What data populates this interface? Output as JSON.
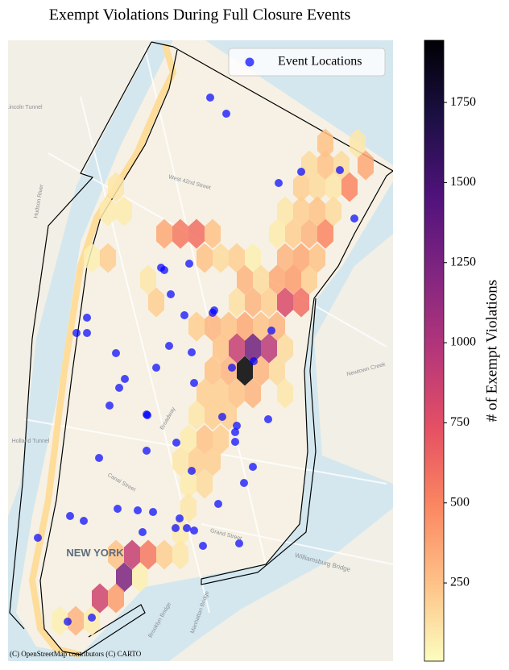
{
  "chart_data": {
    "type": "hexbin",
    "title": "Exempt Violations During Full Closure Events",
    "xlim": [
      -74.03,
      -73.9344
    ],
    "ylim": [
      40.6845,
      40.8
    ],
    "hexbins": {
      "x": [
        -73.9512,
        -73.9432,
        -73.9552,
        -73.9512,
        -73.9472,
        -73.9412,
        -74.0032,
        -73.9572,
        -73.9532,
        -73.9492,
        -73.9452,
        -74.0052,
        -74.0012,
        -73.9612,
        -73.9572,
        -73.9532,
        -73.9492,
        -73.9912,
        -73.9872,
        -73.9832,
        -73.9792,
        -73.9632,
        -73.9592,
        -73.9552,
        -73.9512,
        -74.0092,
        -74.0052,
        -73.9812,
        -73.9772,
        -73.9732,
        -73.9692,
        -73.9612,
        -73.9572,
        -73.9532,
        -73.9952,
        -73.9712,
        -73.9672,
        -73.9632,
        -73.9592,
        -73.9552,
        -73.9932,
        -73.9732,
        -73.9692,
        -73.9652,
        -73.9612,
        -73.9572,
        -73.9832,
        -73.9792,
        -73.9752,
        -73.9712,
        -73.9672,
        -73.9632,
        -73.9772,
        -73.9732,
        -73.9692,
        -73.9652,
        -73.9612,
        -73.9792,
        -73.9752,
        -73.9712,
        -73.9672,
        -73.9632,
        -73.9812,
        -73.9772,
        -73.9732,
        -73.9692,
        -73.9612,
        -73.9832,
        -73.9792,
        -73.9752,
        -73.9852,
        -73.9812,
        -73.9772,
        -73.9872,
        -73.9832,
        -73.9792,
        -73.9852,
        -73.9812,
        -73.9852,
        -73.9872,
        -74.0032,
        -73.9992,
        -73.9952,
        -73.9912,
        -73.9872,
        -74.0012,
        -73.9972,
        -74.0072,
        -74.0032,
        -74.0172,
        -74.0132,
        -74.0092
      ],
      "y": [
        40.7808,
        40.7808,
        40.77675,
        40.77675,
        40.77675,
        40.77675,
        40.7727,
        40.7727,
        40.7727,
        40.7727,
        40.7727,
        40.7682,
        40.7682,
        40.7682,
        40.7682,
        40.7682,
        40.7682,
        40.764,
        40.764,
        40.764,
        40.764,
        40.764,
        40.764,
        40.764,
        40.764,
        40.7595,
        40.7595,
        40.7595,
        40.7595,
        40.7595,
        40.7595,
        40.7595,
        40.7595,
        40.7595,
        40.75545,
        40.75545,
        40.75545,
        40.75545,
        40.75545,
        40.75545,
        40.75125,
        40.75125,
        40.75125,
        40.75125,
        40.75125,
        40.75125,
        40.74675,
        40.74675,
        40.74675,
        40.74675,
        40.74675,
        40.74675,
        40.7427,
        40.7427,
        40.7427,
        40.7427,
        40.7427,
        40.7385,
        40.7385,
        40.7385,
        40.7385,
        40.7385,
        40.7343,
        40.7343,
        40.7343,
        40.7343,
        40.7343,
        40.73025,
        40.73025,
        40.73025,
        40.72575,
        40.72575,
        40.72575,
        40.7217,
        40.7217,
        40.7217,
        40.7175,
        40.7175,
        40.713,
        40.7085,
        40.7043,
        40.7043,
        40.7043,
        40.7043,
        40.7043,
        40.7001,
        40.7001,
        40.6962,
        40.6962,
        40.692,
        40.692,
        40.692
      ],
      "values": [
        250,
        100,
        150,
        250,
        150,
        350,
        100,
        200,
        150,
        100,
        500,
        80,
        80,
        100,
        200,
        250,
        150,
        350,
        550,
        600,
        250,
        80,
        200,
        300,
        500,
        60,
        200,
        250,
        150,
        200,
        60,
        300,
        350,
        250,
        100,
        300,
        150,
        350,
        400,
        200,
        200,
        120,
        300,
        200,
        800,
        600,
        200,
        300,
        250,
        350,
        250,
        300,
        250,
        900,
        1300,
        950,
        150,
        250,
        300,
        1944,
        300,
        150,
        200,
        200,
        250,
        300,
        100,
        100,
        200,
        200,
        80,
        250,
        200,
        100,
        200,
        200,
        80,
        150,
        100,
        80,
        250,
        900,
        550,
        200,
        100,
        1250,
        60,
        850,
        400,
        60,
        300,
        80
      ]
    },
    "points": {
      "name": "Event Locations",
      "color": "#0000ff",
      "x": [
        -73.9798,
        -73.9758,
        -73.9572,
        -73.9476,
        -73.9628,
        -73.944,
        -73.985,
        -73.992,
        -73.9912,
        -73.9896,
        -73.9792,
        -73.9788,
        -73.9862,
        -74.0104,
        -74.013,
        -74.0104,
        -73.9646,
        -73.99,
        -73.9844,
        -74.0032,
        -73.969,
        -73.9744,
        -73.9932,
        -74.001,
        -73.9838,
        -74.0024,
        -74.0048,
        -73.9956,
        -73.9954,
        -73.9768,
        -73.9654,
        -73.9732,
        -73.9736,
        -73.9736,
        -73.9882,
        -73.9956,
        -74.0074,
        -73.9692,
        -73.9844,
        -73.9714,
        -73.9778,
        -74.0028,
        -73.9978,
        -73.994,
        -74.0146,
        -74.0112,
        -73.9874,
        -73.9884,
        -73.9856,
        -73.9838,
        -73.9966,
        -74.0226,
        -73.9726,
        -73.9816,
        -74.0152,
        -74.0092
      ],
      "y": [
        40.78935,
        40.78635,
        40.77555,
        40.77585,
        40.77345,
        40.76685,
        40.75845,
        40.7577,
        40.75725,
        40.75275,
        40.7493,
        40.74975,
        40.74885,
        40.7484,
        40.74555,
        40.74555,
        40.746,
        40.74315,
        40.74195,
        40.7418,
        40.7403,
        40.7391,
        40.7391,
        40.737,
        40.73625,
        40.73535,
        40.73205,
        40.7304,
        40.73025,
        40.72995,
        40.7295,
        40.7283,
        40.7271,
        40.7253,
        40.72515,
        40.72365,
        40.7223,
        40.72065,
        40.7199,
        40.71765,
        40.71375,
        40.71285,
        40.71255,
        40.71225,
        40.7115,
        40.7106,
        40.71105,
        40.70925,
        40.70925,
        40.7088,
        40.7085,
        40.70745,
        40.7064,
        40.70595,
        40.69185,
        40.6926
      ]
    },
    "colorbar": {
      "label": "# of Exempt Violations",
      "clim": [
        6,
        1944
      ],
      "ticks": [
        250,
        500,
        750,
        1000,
        1250,
        1500,
        1750
      ],
      "colors": [
        "#fcfdbf",
        "#fec287",
        "#fb8761",
        "#e55064",
        "#b5367a",
        "#812581",
        "#4f127b",
        "#1c1044",
        "#000004"
      ]
    },
    "legend": "upper right",
    "basemap_labels": [
      "NEW YORK",
      "Hudson River",
      "Holland Tunnel",
      "Lincoln Tunnel",
      "Williamsburg Bridge",
      "Newtown Creek",
      "Brooklyn Bridge",
      "Manhattan Bridge",
      "West 42nd Street",
      "Broadway",
      "Grand Street",
      "Canal Street"
    ],
    "attribution": "(C) OpenStreetMap contributors (C) CARTO"
  }
}
